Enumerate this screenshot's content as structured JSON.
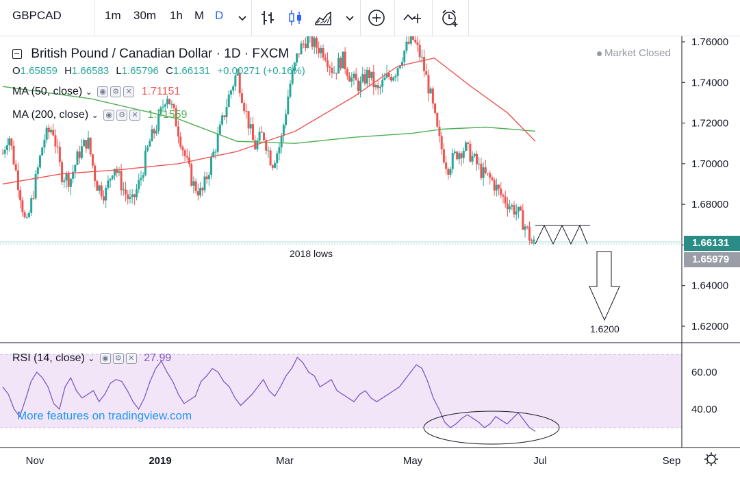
{
  "toolbar": {
    "symbol": "GBPCAD",
    "intervals": [
      "1m",
      "30m",
      "1h",
      "M",
      "D"
    ],
    "active_interval": "D"
  },
  "legend": {
    "title": "British Pound / Canadian Dollar · 1D · FXCM",
    "ohlc": {
      "o_label": "O",
      "o": "1.65859",
      "h_label": "H",
      "h": "1.66583",
      "l_label": "L",
      "l": "1.65796",
      "c_label": "C",
      "c": "1.66131",
      "change": "+0.00271 (+0.16%)"
    },
    "ma50": {
      "label": "MA (50, close)",
      "value": "1.71151"
    },
    "ma200": {
      "label": "MA (200, close)",
      "value": "1.71559"
    },
    "market_status": "Market Closed"
  },
  "rsi_legend": {
    "label": "RSI (14, close)",
    "value": "27.99"
  },
  "watermark": "More features on tradingview.com",
  "annotations": {
    "lows_label": "2018 lows",
    "target_label": "1.6200"
  },
  "price_tags": {
    "last": "1.66131",
    "low": "1.65979"
  },
  "colors": {
    "up": "#26a69a",
    "down": "#ef5350",
    "ma50": "#ef5350",
    "ma200": "#4caf50",
    "rsi": "#7e57c2",
    "rsi_band": "#f3e5f8",
    "tag_last": "#2a8c86",
    "tag_low": "#9a9da6",
    "accent": "#2962ff"
  },
  "chart_data": [
    {
      "type": "candlestick",
      "title": "British Pound / Canadian Dollar · 1D · FXCM",
      "x_ticks": [
        "Nov",
        "2019",
        "Mar",
        "May",
        "Jul",
        "Sep"
      ],
      "y_ticks": [
        1.62,
        1.64,
        1.66,
        1.68,
        1.7,
        1.72,
        1.74,
        1.76
      ],
      "ylim": [
        1.605,
        1.765
      ],
      "close_path": [
        [
          0,
          1.705
        ],
        [
          4,
          1.715
        ],
        [
          8,
          1.7
        ],
        [
          12,
          1.685
        ],
        [
          16,
          1.668
        ],
        [
          22,
          1.69
        ],
        [
          28,
          1.712
        ],
        [
          34,
          1.718
        ],
        [
          40,
          1.695
        ],
        [
          46,
          1.692
        ],
        [
          52,
          1.705
        ],
        [
          58,
          1.712
        ],
        [
          64,
          1.69
        ],
        [
          70,
          1.685
        ],
        [
          76,
          1.7
        ],
        [
          82,
          1.688
        ],
        [
          88,
          1.68
        ],
        [
          94,
          1.692
        ],
        [
          100,
          1.71
        ],
        [
          106,
          1.72
        ],
        [
          112,
          1.735
        ],
        [
          118,
          1.722
        ],
        [
          124,
          1.705
        ],
        [
          130,
          1.69
        ],
        [
          136,
          1.685
        ],
        [
          142,
          1.7
        ],
        [
          148,
          1.715
        ],
        [
          154,
          1.732
        ],
        [
          160,
          1.745
        ],
        [
          166,
          1.726
        ],
        [
          172,
          1.708
        ],
        [
          178,
          1.715
        ],
        [
          184,
          1.7
        ],
        [
          190,
          1.71
        ],
        [
          196,
          1.738
        ],
        [
          202,
          1.755
        ],
        [
          208,
          1.762
        ],
        [
          214,
          1.758
        ],
        [
          220,
          1.755
        ],
        [
          226,
          1.745
        ],
        [
          232,
          1.752
        ],
        [
          238,
          1.742
        ],
        [
          244,
          1.738
        ],
        [
          250,
          1.745
        ],
        [
          256,
          1.735
        ],
        [
          262,
          1.742
        ],
        [
          268,
          1.745
        ],
        [
          274,
          1.755
        ],
        [
          280,
          1.762
        ],
        [
          286,
          1.752
        ],
        [
          292,
          1.735
        ],
        [
          298,
          1.712
        ],
        [
          304,
          1.698
        ],
        [
          310,
          1.705
        ],
        [
          316,
          1.708
        ],
        [
          322,
          1.702
        ],
        [
          328,
          1.695
        ],
        [
          334,
          1.692
        ],
        [
          340,
          1.685
        ],
        [
          346,
          1.68
        ],
        [
          352,
          1.676
        ],
        [
          358,
          1.668
        ],
        [
          362,
          1.6598
        ],
        [
          364,
          1.6613
        ]
      ],
      "ma50_path": [
        [
          0,
          1.69
        ],
        [
          40,
          1.695
        ],
        [
          80,
          1.697
        ],
        [
          120,
          1.7
        ],
        [
          160,
          1.706
        ],
        [
          200,
          1.716
        ],
        [
          240,
          1.733
        ],
        [
          270,
          1.748
        ],
        [
          295,
          1.752
        ],
        [
          320,
          1.738
        ],
        [
          345,
          1.725
        ],
        [
          364,
          1.711
        ]
      ],
      "ma200_path": [
        [
          0,
          1.738
        ],
        [
          60,
          1.732
        ],
        [
          120,
          1.722
        ],
        [
          160,
          1.711
        ],
        [
          200,
          1.71
        ],
        [
          240,
          1.713
        ],
        [
          280,
          1.715
        ],
        [
          300,
          1.717
        ],
        [
          330,
          1.718
        ],
        [
          364,
          1.716
        ]
      ]
    },
    {
      "type": "line",
      "title": "RSI (14, close)",
      "y_ticks": [
        40.0,
        60.0
      ],
      "ylim": [
        17,
        70
      ],
      "band": [
        30,
        70
      ],
      "values": [
        52,
        48,
        40,
        36,
        45,
        55,
        60,
        57,
        52,
        43,
        40,
        52,
        57,
        50,
        46,
        48,
        50,
        44,
        48,
        54,
        56,
        55,
        50,
        44,
        40,
        46,
        55,
        62,
        66,
        60,
        55,
        48,
        43,
        45,
        47,
        55,
        58,
        62,
        60,
        55,
        52,
        46,
        42,
        45,
        48,
        52,
        56,
        50,
        47,
        52,
        58,
        62,
        68,
        65,
        60,
        58,
        52,
        54,
        56,
        50,
        48,
        46,
        44,
        48,
        50,
        46,
        44,
        46,
        48,
        50,
        52,
        56,
        60,
        64,
        62,
        55,
        46,
        40,
        33,
        30,
        32,
        35,
        37,
        35,
        33,
        30,
        32,
        36,
        34,
        32,
        35,
        38,
        34,
        30,
        28
      ]
    }
  ]
}
